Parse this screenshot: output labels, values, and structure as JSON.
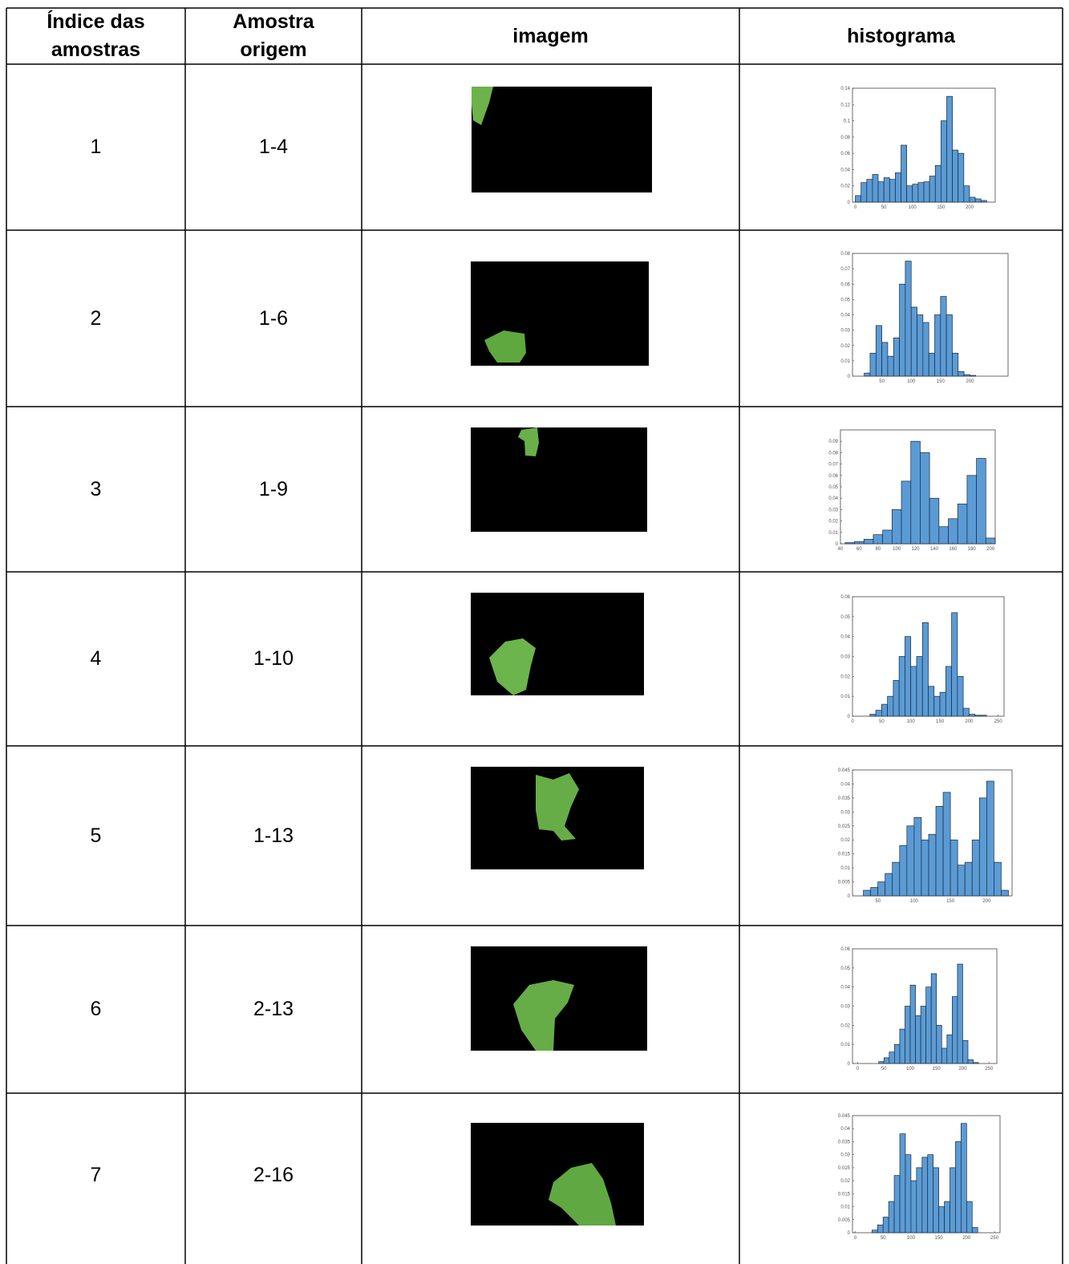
{
  "header": [
    "Índice das amostras",
    "Amostra origem",
    "imagem",
    "histograma"
  ],
  "rows": [
    {
      "index": "1",
      "origin": "1-4",
      "histogram": {
        "type": "histogram",
        "color": "#5b9bd5",
        "bins": [
          0,
          10,
          20,
          30,
          40,
          50,
          60,
          70,
          80,
          90,
          100,
          110,
          120,
          130,
          140,
          150,
          160,
          170,
          180,
          190,
          200,
          210,
          220,
          230
        ],
        "values": [
          0.008,
          0.024,
          0.028,
          0.034,
          0.025,
          0.03,
          0.028,
          0.036,
          0.07,
          0.02,
          0.022,
          0.024,
          0.025,
          0.032,
          0.045,
          0.1,
          0.13,
          0.064,
          0.06,
          0.02,
          0.006,
          0.004,
          0.002
        ],
        "xlim": [
          -5,
          245
        ],
        "xticks": [
          0,
          50,
          100,
          150,
          200
        ],
        "ylim": [
          0,
          0.14
        ],
        "yticks": [
          0,
          0.02,
          0.04,
          0.06,
          0.08,
          0.1,
          0.12,
          0.14
        ]
      }
    },
    {
      "index": "2",
      "origin": "1-6",
      "histogram": {
        "type": "histogram",
        "color": "#5b9bd5",
        "bins": [
          20,
          30,
          40,
          50,
          60,
          70,
          80,
          90,
          100,
          110,
          120,
          130,
          140,
          150,
          160,
          170,
          180,
          190,
          200,
          210
        ],
        "values": [
          0.002,
          0.015,
          0.033,
          0.022,
          0.013,
          0.025,
          0.06,
          0.075,
          0.045,
          0.04,
          0.035,
          0.015,
          0.04,
          0.052,
          0.04,
          0.015,
          0.003,
          0.001,
          0.0005
        ],
        "xlim": [
          0,
          265
        ],
        "xticks": [
          50,
          100,
          150,
          200
        ],
        "ylim": [
          0,
          0.08
        ],
        "yticks": [
          0,
          0.01,
          0.02,
          0.03,
          0.04,
          0.05,
          0.06,
          0.07,
          0.08
        ]
      }
    },
    {
      "index": "3",
      "origin": "1-9",
      "histogram": {
        "type": "histogram",
        "color": "#5b9bd5",
        "bins": [
          45,
          55,
          65,
          75,
          85,
          95,
          105,
          115,
          125,
          135,
          145,
          155,
          165,
          175,
          185,
          195,
          205
        ],
        "values": [
          0.001,
          0.002,
          0.004,
          0.008,
          0.012,
          0.03,
          0.055,
          0.09,
          0.08,
          0.04,
          0.015,
          0.022,
          0.035,
          0.06,
          0.075,
          0.005
        ],
        "xlim": [
          40,
          205
        ],
        "xticks": [
          40,
          60,
          80,
          100,
          120,
          140,
          160,
          180,
          200
        ],
        "ylim": [
          0,
          0.1
        ],
        "yticks": [
          0,
          0.01,
          0.02,
          0.03,
          0.04,
          0.05,
          0.06,
          0.07,
          0.08,
          0.09
        ]
      }
    },
    {
      "index": "4",
      "origin": "1-10",
      "histogram": {
        "type": "histogram",
        "color": "#5b9bd5",
        "bins": [
          30,
          40,
          50,
          60,
          70,
          80,
          90,
          100,
          110,
          120,
          130,
          140,
          150,
          160,
          170,
          180,
          190,
          200,
          210,
          220,
          230
        ],
        "values": [
          0.001,
          0.003,
          0.006,
          0.01,
          0.018,
          0.03,
          0.04,
          0.025,
          0.03,
          0.047,
          0.015,
          0.01,
          0.012,
          0.025,
          0.052,
          0.02,
          0.004,
          0.001,
          0.0005,
          0.0005
        ],
        "xlim": [
          0,
          260
        ],
        "xticks": [
          0,
          50,
          100,
          150,
          200,
          250
        ],
        "ylim": [
          0,
          0.06
        ],
        "yticks": [
          0,
          0.01,
          0.02,
          0.03,
          0.04,
          0.05,
          0.06
        ]
      }
    },
    {
      "index": "5",
      "origin": "1-13",
      "histogram": {
        "type": "histogram",
        "color": "#5b9bd5",
        "bins": [
          30,
          40,
          50,
          60,
          70,
          80,
          90,
          100,
          110,
          120,
          130,
          140,
          150,
          160,
          170,
          180,
          190,
          200,
          210,
          220,
          230
        ],
        "values": [
          0.002,
          0.003,
          0.005,
          0.008,
          0.012,
          0.018,
          0.025,
          0.028,
          0.02,
          0.022,
          0.032,
          0.037,
          0.02,
          0.011,
          0.012,
          0.02,
          0.035,
          0.041,
          0.012,
          0.002
        ],
        "xlim": [
          15,
          235
        ],
        "xticks": [
          50,
          100,
          150,
          200
        ],
        "ylim": [
          0,
          0.045
        ],
        "yticks": [
          0,
          0.005,
          0.01,
          0.015,
          0.02,
          0.025,
          0.03,
          0.035,
          0.04,
          0.045
        ]
      }
    },
    {
      "index": "6",
      "origin": "2-13",
      "histogram": {
        "type": "histogram",
        "color": "#5b9bd5",
        "bins": [
          40,
          50,
          60,
          70,
          80,
          90,
          100,
          110,
          120,
          130,
          140,
          150,
          160,
          170,
          180,
          190,
          200,
          210,
          220,
          230
        ],
        "values": [
          0.001,
          0.003,
          0.006,
          0.01,
          0.018,
          0.03,
          0.041,
          0.025,
          0.03,
          0.04,
          0.047,
          0.02,
          0.008,
          0.015,
          0.035,
          0.052,
          0.012,
          0.002,
          0.0005
        ],
        "xlim": [
          -10,
          265
        ],
        "xticks": [
          0,
          50,
          100,
          150,
          200,
          250
        ],
        "ylim": [
          0,
          0.06
        ],
        "yticks": [
          0,
          0.01,
          0.02,
          0.03,
          0.04,
          0.05,
          0.06
        ]
      }
    },
    {
      "index": "7",
      "origin": "2-16",
      "histogram": {
        "type": "histogram",
        "color": "#5b9bd5",
        "bins": [
          30,
          40,
          50,
          60,
          70,
          80,
          90,
          100,
          110,
          120,
          130,
          140,
          150,
          160,
          170,
          180,
          190,
          200,
          210,
          220
        ],
        "values": [
          0.001,
          0.003,
          0.006,
          0.012,
          0.022,
          0.038,
          0.03,
          0.02,
          0.025,
          0.029,
          0.03,
          0.025,
          0.01,
          0.012,
          0.025,
          0.035,
          0.042,
          0.012,
          0.002
        ],
        "xlim": [
          -5,
          260
        ],
        "xticks": [
          0,
          50,
          100,
          150,
          200,
          250
        ],
        "ylim": [
          0,
          0.045
        ],
        "yticks": [
          0,
          0.005,
          0.01,
          0.015,
          0.02,
          0.025,
          0.03,
          0.035,
          0.04,
          0.045
        ]
      }
    }
  ]
}
